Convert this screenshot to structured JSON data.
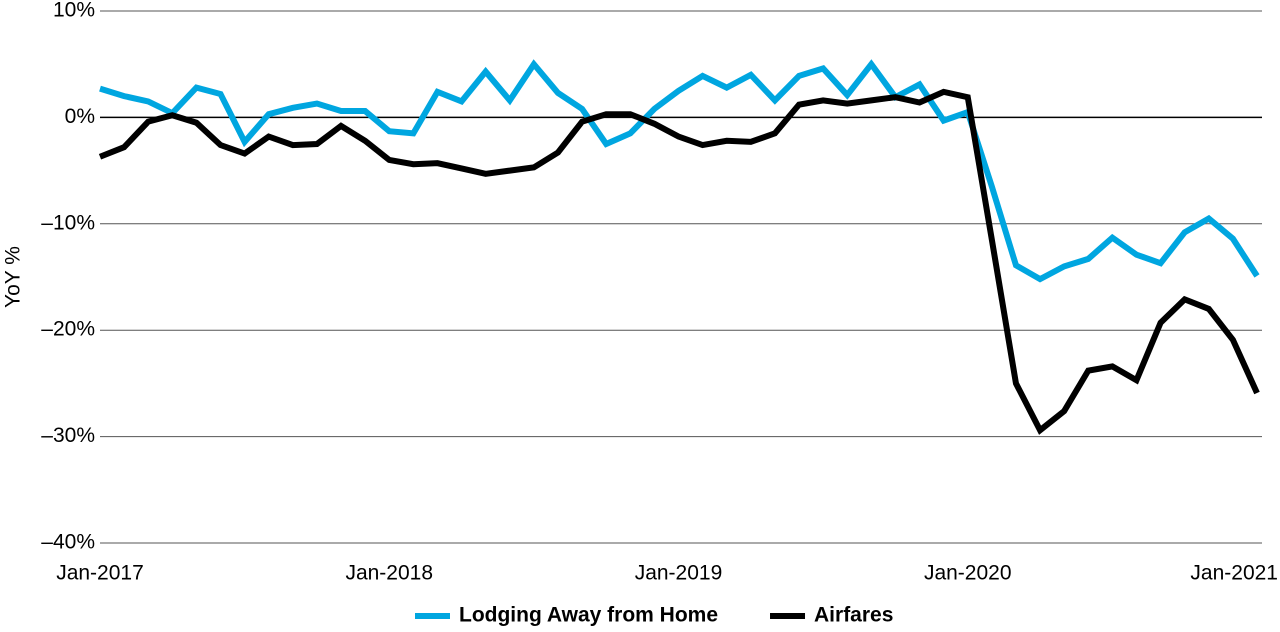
{
  "chart_data": {
    "type": "line",
    "categories": [
      "Jan-2017",
      null,
      null,
      null,
      null,
      null,
      null,
      null,
      null,
      null,
      null,
      null,
      "Jan-2018",
      null,
      null,
      null,
      null,
      null,
      null,
      null,
      null,
      null,
      null,
      null,
      "Jan-2019",
      null,
      null,
      null,
      null,
      null,
      null,
      null,
      null,
      null,
      null,
      null,
      "Jan-2020",
      null,
      null,
      null,
      null,
      null,
      null,
      null,
      null,
      null,
      null,
      null,
      "Jan-2021"
    ],
    "ylabel": "YoY %",
    "ylim": [
      -40,
      10
    ],
    "yticks": [
      {
        "value": 10,
        "label": "10%"
      },
      {
        "value": 0,
        "label": "0%"
      },
      {
        "value": -10,
        "label": "–10%"
      },
      {
        "value": -20,
        "label": "–20%"
      },
      {
        "value": -30,
        "label": "–30%"
      },
      {
        "value": -40,
        "label": "–40%"
      }
    ],
    "grid": true,
    "legend": "bottom",
    "series": [
      {
        "name": "Lodging Away from Home",
        "color": "#00a6e0",
        "values": [
          2.7,
          2.0,
          1.5,
          0.4,
          2.8,
          2.2,
          -2.3,
          0.3,
          0.9,
          1.3,
          0.6,
          0.6,
          -1.3,
          -1.5,
          2.4,
          1.5,
          4.3,
          1.6,
          5.0,
          2.3,
          0.8,
          -2.5,
          -1.5,
          0.8,
          2.5,
          3.9,
          2.8,
          4.0,
          1.6,
          3.9,
          4.6,
          2.1,
          5.0,
          1.9,
          3.1,
          -0.3,
          0.5,
          -6.5,
          -13.9,
          -15.2,
          -14.0,
          -13.3,
          -11.3,
          -12.9,
          -13.7,
          -10.8,
          -9.5,
          -11.4,
          -14.9
        ]
      },
      {
        "name": "Airfares",
        "color": "#000000",
        "values": [
          -3.7,
          -2.8,
          -0.4,
          0.2,
          -0.5,
          -2.6,
          -3.4,
          -1.8,
          -2.6,
          -2.5,
          -0.8,
          -2.2,
          -4.0,
          -4.4,
          -4.3,
          -4.8,
          -5.3,
          -5.0,
          -4.7,
          -3.3,
          -0.4,
          0.3,
          0.3,
          -0.6,
          -1.8,
          -2.6,
          -2.2,
          -2.3,
          -1.5,
          1.2,
          1.6,
          1.3,
          1.6,
          1.9,
          1.4,
          2.4,
          1.9,
          -11.5,
          -25.0,
          -29.4,
          -27.6,
          -23.8,
          -23.4,
          -24.7,
          -19.3,
          -17.1,
          -18.0,
          -20.9,
          -25.9
        ]
      }
    ]
  }
}
